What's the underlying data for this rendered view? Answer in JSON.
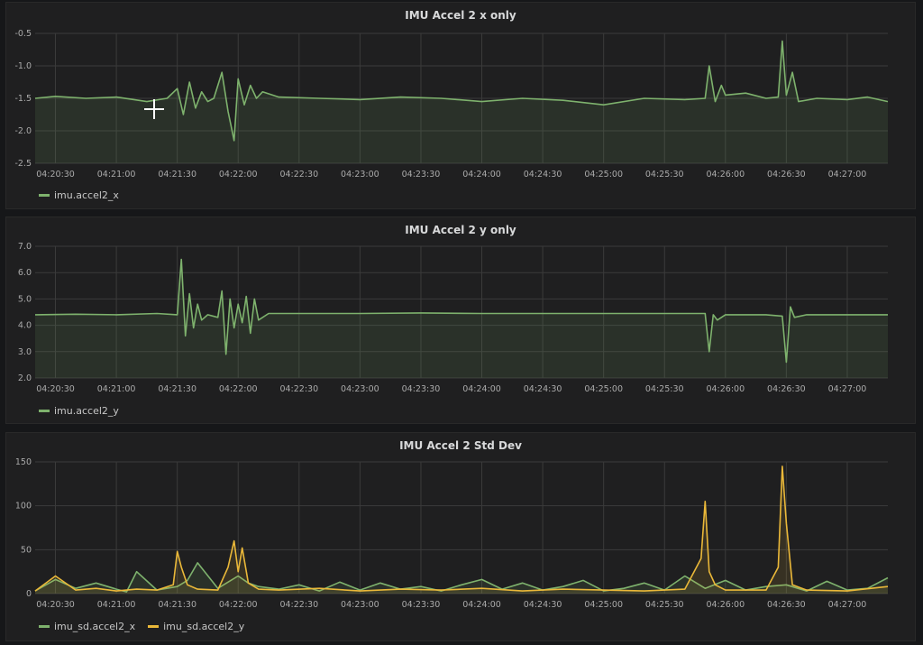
{
  "colors": {
    "series_x": "#7eb26d",
    "series_y": "#eab839",
    "grid": "#3b3b3b",
    "plot_bg": "#25291f"
  },
  "panels": [
    {
      "title": "IMU Accel 2 x only",
      "legend": [
        {
          "label": "imu.accel2_x",
          "color": "#7eb26d"
        }
      ]
    },
    {
      "title": "IMU Accel 2 y only",
      "legend": [
        {
          "label": "imu.accel2_y",
          "color": "#7eb26d"
        }
      ]
    },
    {
      "title": "IMU Accel 2 Std Dev",
      "legend": [
        {
          "label": "imu_sd.accel2_x",
          "color": "#7eb26d"
        },
        {
          "label": "imu_sd.accel2_y",
          "color": "#eab839"
        }
      ]
    }
  ],
  "chart_data": [
    {
      "type": "line",
      "title": "IMU Accel 2 x only",
      "fill": true,
      "grid": true,
      "legend_position": "bottom-left",
      "xlim": [
        "04:20:20",
        "04:27:20"
      ],
      "ylim": [
        -2.5,
        -0.5
      ],
      "x_ticks": [
        "04:20:30",
        "04:21:00",
        "04:21:30",
        "04:22:00",
        "04:22:30",
        "04:23:00",
        "04:23:30",
        "04:24:00",
        "04:24:30",
        "04:25:00",
        "04:25:30",
        "04:26:00",
        "04:26:30",
        "04:27:00"
      ],
      "y_ticks": [
        "-0.5",
        "-1.0",
        "-1.5",
        "-2.0",
        "-2.5"
      ],
      "series": [
        {
          "name": "imu.accel2_x",
          "color": "#7eb26d",
          "x": [
            "04:20:20",
            "04:20:30",
            "04:20:45",
            "04:21:00",
            "04:21:15",
            "04:21:25",
            "04:21:30",
            "04:21:33",
            "04:21:36",
            "04:21:39",
            "04:21:42",
            "04:21:45",
            "04:21:48",
            "04:21:52",
            "04:21:55",
            "04:21:58",
            "04:22:00",
            "04:22:03",
            "04:22:06",
            "04:22:09",
            "04:22:12",
            "04:22:20",
            "04:22:40",
            "04:23:00",
            "04:23:20",
            "04:23:40",
            "04:24:00",
            "04:24:20",
            "04:24:40",
            "04:25:00",
            "04:25:20",
            "04:25:40",
            "04:25:50",
            "04:25:52",
            "04:25:55",
            "04:25:58",
            "04:26:00",
            "04:26:10",
            "04:26:20",
            "04:26:26",
            "04:26:28",
            "04:26:30",
            "04:26:33",
            "04:26:36",
            "04:26:45",
            "04:27:00",
            "04:27:10",
            "04:27:20"
          ],
          "y": [
            -1.5,
            -1.47,
            -1.5,
            -1.48,
            -1.55,
            -1.5,
            -1.35,
            -1.75,
            -1.25,
            -1.65,
            -1.4,
            -1.55,
            -1.5,
            -1.1,
            -1.7,
            -2.15,
            -1.2,
            -1.6,
            -1.3,
            -1.5,
            -1.4,
            -1.48,
            -1.5,
            -1.52,
            -1.48,
            -1.5,
            -1.55,
            -1.5,
            -1.53,
            -1.6,
            -1.5,
            -1.52,
            -1.5,
            -1.0,
            -1.55,
            -1.3,
            -1.45,
            -1.42,
            -1.5,
            -1.48,
            -0.62,
            -1.45,
            -1.1,
            -1.55,
            -1.5,
            -1.52,
            -1.48,
            -1.55
          ]
        }
      ]
    },
    {
      "type": "line",
      "title": "IMU Accel 2 y only",
      "fill": true,
      "grid": true,
      "legend_position": "bottom-left",
      "xlim": [
        "04:20:20",
        "04:27:20"
      ],
      "ylim": [
        2.0,
        7.0
      ],
      "x_ticks": [
        "04:20:30",
        "04:21:00",
        "04:21:30",
        "04:22:00",
        "04:22:30",
        "04:23:00",
        "04:23:30",
        "04:24:00",
        "04:24:30",
        "04:25:00",
        "04:25:30",
        "04:26:00",
        "04:26:30",
        "04:27:00"
      ],
      "y_ticks": [
        "7.0",
        "6.0",
        "5.0",
        "4.0",
        "3.0",
        "2.0"
      ],
      "series": [
        {
          "name": "imu.accel2_y",
          "color": "#7eb26d",
          "x": [
            "04:20:20",
            "04:20:40",
            "04:21:00",
            "04:21:20",
            "04:21:30",
            "04:21:32",
            "04:21:34",
            "04:21:36",
            "04:21:38",
            "04:21:40",
            "04:21:42",
            "04:21:45",
            "04:21:50",
            "04:21:52",
            "04:21:54",
            "04:21:56",
            "04:21:58",
            "04:22:00",
            "04:22:02",
            "04:22:04",
            "04:22:06",
            "04:22:08",
            "04:22:10",
            "04:22:15",
            "04:22:30",
            "04:23:00",
            "04:23:30",
            "04:24:00",
            "04:24:30",
            "04:25:00",
            "04:25:30",
            "04:25:50",
            "04:25:52",
            "04:25:54",
            "04:25:56",
            "04:26:00",
            "04:26:20",
            "04:26:28",
            "04:26:30",
            "04:26:32",
            "04:26:34",
            "04:26:40",
            "04:27:00",
            "04:27:20"
          ],
          "y": [
            4.4,
            4.42,
            4.4,
            4.45,
            4.4,
            6.5,
            3.6,
            5.2,
            3.9,
            4.8,
            4.2,
            4.4,
            4.3,
            5.3,
            2.9,
            5.0,
            3.9,
            4.8,
            4.1,
            5.1,
            3.7,
            5.0,
            4.2,
            4.45,
            4.45,
            4.45,
            4.47,
            4.45,
            4.45,
            4.45,
            4.45,
            4.45,
            3.0,
            4.4,
            4.2,
            4.4,
            4.4,
            4.35,
            2.6,
            4.7,
            4.3,
            4.4,
            4.4,
            4.4
          ]
        }
      ]
    },
    {
      "type": "line",
      "title": "IMU Accel 2 Std Dev",
      "fill": true,
      "grid": true,
      "legend_position": "bottom-left",
      "xlim": [
        "04:20:20",
        "04:27:20"
      ],
      "ylim": [
        0,
        150
      ],
      "x_ticks": [
        "04:20:30",
        "04:21:00",
        "04:21:30",
        "04:22:00",
        "04:22:30",
        "04:23:00",
        "04:23:30",
        "04:24:00",
        "04:24:30",
        "04:25:00",
        "04:25:30",
        "04:26:00",
        "04:26:30",
        "04:27:00"
      ],
      "y_ticks": [
        "150",
        "100",
        "50",
        "0"
      ],
      "series": [
        {
          "name": "imu_sd.accel2_x",
          "color": "#7eb26d",
          "x": [
            "04:20:20",
            "04:20:30",
            "04:20:40",
            "04:20:50",
            "04:21:00",
            "04:21:05",
            "04:21:10",
            "04:21:20",
            "04:21:30",
            "04:21:35",
            "04:21:40",
            "04:21:50",
            "04:22:00",
            "04:22:05",
            "04:22:10",
            "04:22:20",
            "04:22:30",
            "04:22:40",
            "04:22:50",
            "04:23:00",
            "04:23:10",
            "04:23:20",
            "04:23:30",
            "04:23:40",
            "04:23:50",
            "04:24:00",
            "04:24:10",
            "04:24:20",
            "04:24:30",
            "04:24:40",
            "04:24:50",
            "04:25:00",
            "04:25:10",
            "04:25:20",
            "04:25:30",
            "04:25:40",
            "04:25:50",
            "04:26:00",
            "04:26:10",
            "04:26:20",
            "04:26:30",
            "04:26:40",
            "04:26:50",
            "04:27:00",
            "04:27:10",
            "04:27:20"
          ],
          "y": [
            3,
            16,
            6,
            12,
            5,
            2,
            25,
            4,
            8,
            15,
            35,
            6,
            20,
            12,
            8,
            5,
            10,
            3,
            13,
            4,
            12,
            5,
            8,
            3,
            10,
            16,
            5,
            12,
            4,
            8,
            15,
            3,
            6,
            12,
            4,
            20,
            6,
            15,
            4,
            8,
            10,
            3,
            14,
            4,
            6,
            18
          ]
        },
        {
          "name": "imu_sd.accel2_y",
          "color": "#eab839",
          "x": [
            "04:20:20",
            "04:20:30",
            "04:20:40",
            "04:20:50",
            "04:21:00",
            "04:21:10",
            "04:21:20",
            "04:21:28",
            "04:21:30",
            "04:21:32",
            "04:21:35",
            "04:21:40",
            "04:21:50",
            "04:21:55",
            "04:21:58",
            "04:22:00",
            "04:22:02",
            "04:22:05",
            "04:22:10",
            "04:22:20",
            "04:22:40",
            "04:23:00",
            "04:23:20",
            "04:23:40",
            "04:24:00",
            "04:24:20",
            "04:24:40",
            "04:25:00",
            "04:25:20",
            "04:25:40",
            "04:25:48",
            "04:25:50",
            "04:25:52",
            "04:25:55",
            "04:26:00",
            "04:26:20",
            "04:26:26",
            "04:26:28",
            "04:26:30",
            "04:26:33",
            "04:26:40",
            "04:27:00",
            "04:27:20"
          ],
          "y": [
            3,
            20,
            4,
            6,
            3,
            5,
            4,
            10,
            48,
            30,
            10,
            5,
            4,
            30,
            60,
            25,
            52,
            12,
            5,
            4,
            6,
            3,
            5,
            4,
            6,
            3,
            5,
            4,
            3,
            5,
            40,
            105,
            25,
            10,
            4,
            4,
            30,
            145,
            80,
            10,
            4,
            3,
            8
          ]
        }
      ]
    }
  ]
}
